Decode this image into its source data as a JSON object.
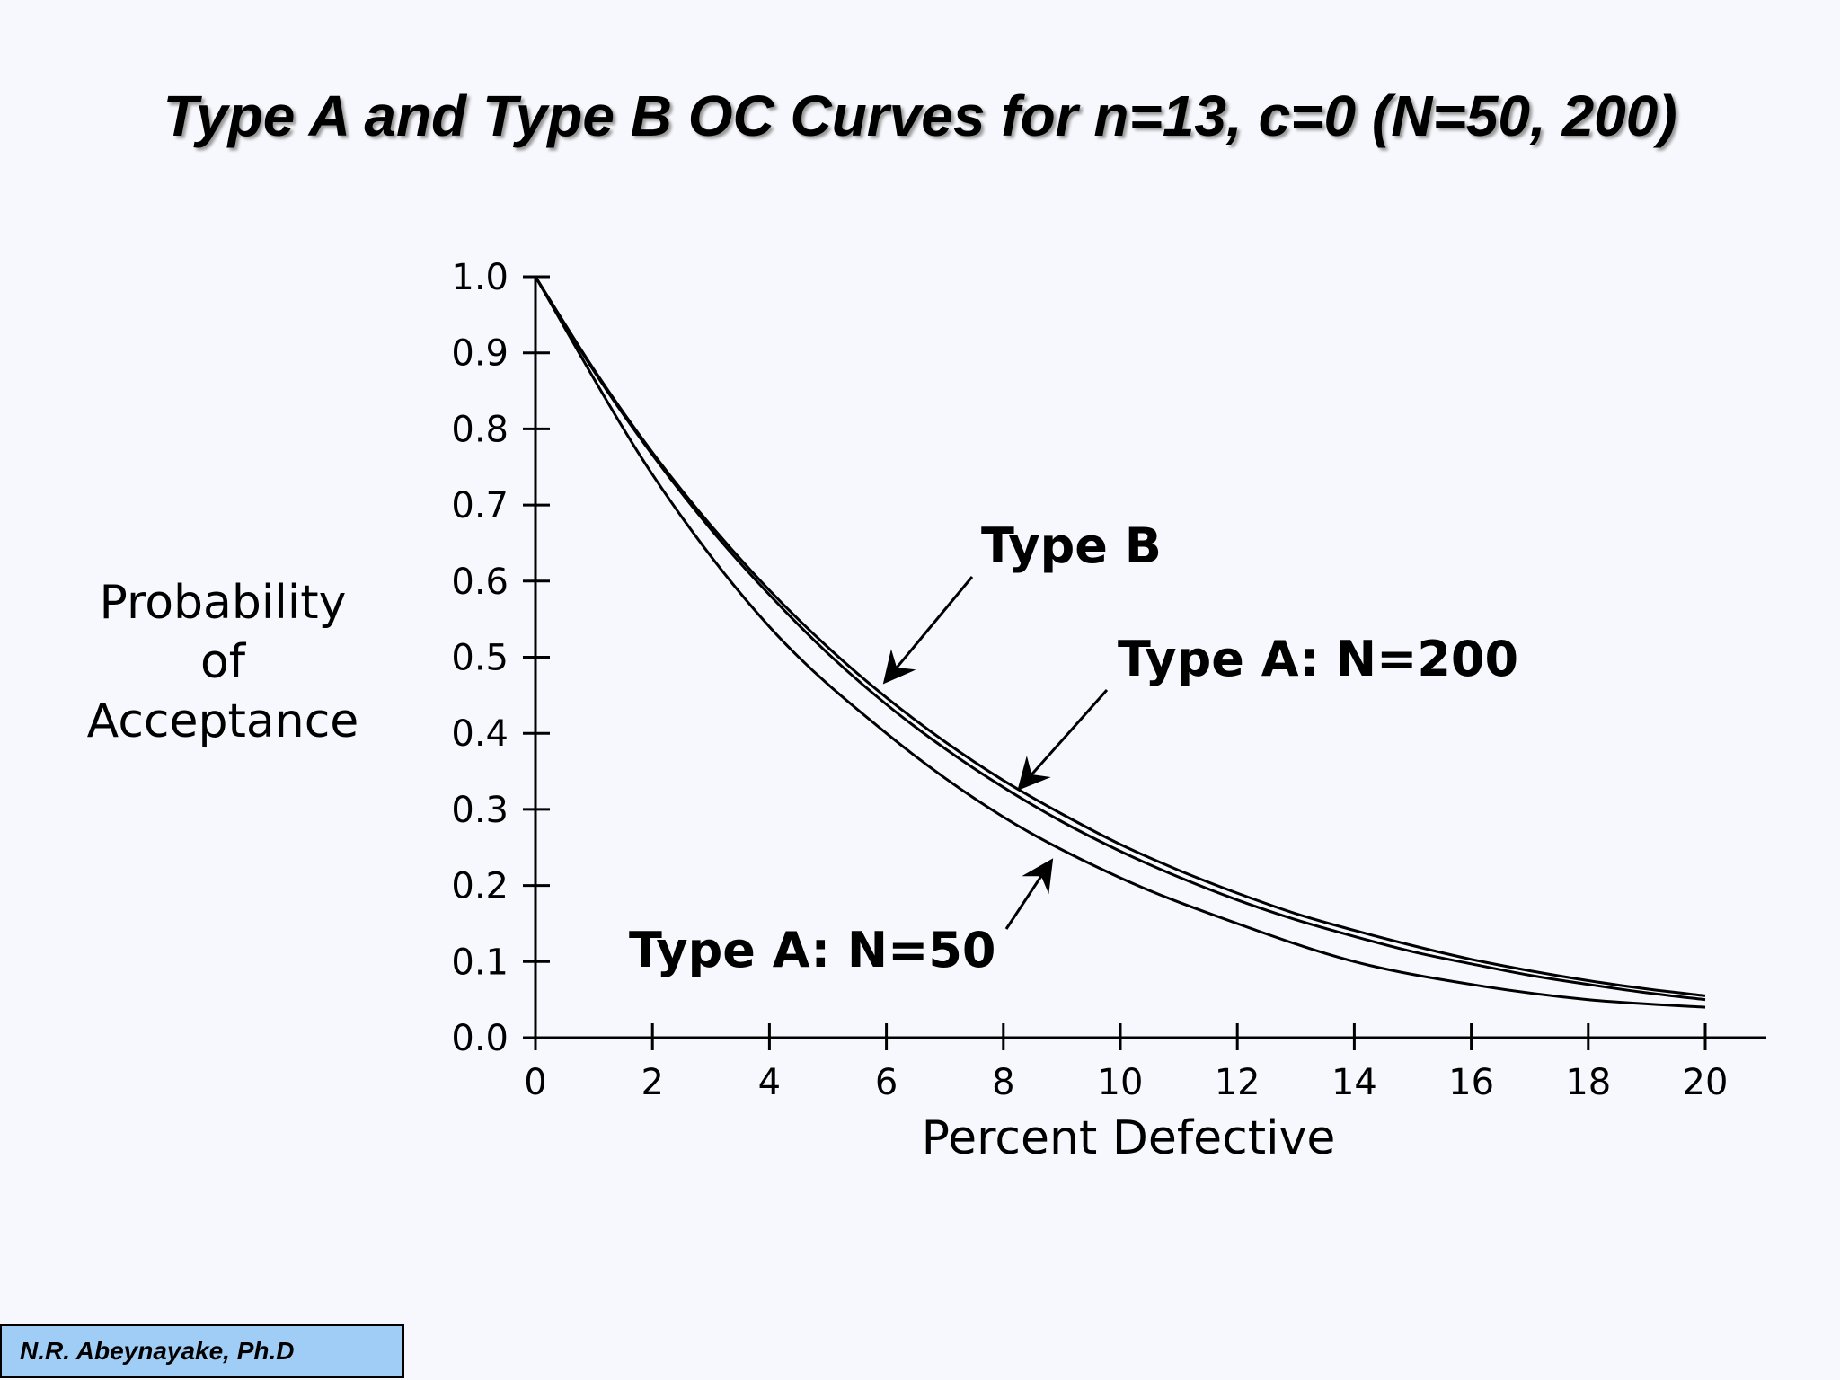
{
  "slide_title": "Type A and Type B OC Curves for n=13, c=0 (N=50, 200)",
  "author": "N.R. Abeynayake, Ph.D",
  "chart_data": {
    "type": "line",
    "xlabel": "Percent Defective",
    "ylabel_lines": [
      "Probability",
      "of",
      "Acceptance"
    ],
    "xlim": [
      0,
      20
    ],
    "ylim": [
      0,
      1
    ],
    "x_ticks": [
      "0",
      "2",
      "4",
      "6",
      "8",
      "10",
      "12",
      "14",
      "16",
      "18",
      "20"
    ],
    "y_ticks": [
      "0.0",
      "0.1",
      "0.2",
      "0.3",
      "0.4",
      "0.5",
      "0.6",
      "0.7",
      "0.8",
      "0.9",
      "1.0"
    ],
    "grid": false,
    "legend": "none",
    "series": [
      {
        "name": "Type B",
        "x": [
          0,
          1,
          2,
          3,
          4,
          5,
          6,
          7,
          8,
          9,
          10,
          11,
          12,
          13,
          14,
          15,
          16,
          17,
          18,
          19,
          20
        ],
        "y": [
          1.0,
          0.878,
          0.769,
          0.673,
          0.588,
          0.513,
          0.447,
          0.389,
          0.338,
          0.294,
          0.254,
          0.22,
          0.19,
          0.163,
          0.141,
          0.121,
          0.103,
          0.088,
          0.075,
          0.064,
          0.055
        ]
      },
      {
        "name": "Type A: N=200",
        "x": [
          0,
          1,
          2,
          3,
          4,
          5,
          6,
          7,
          8,
          9,
          10,
          11,
          12,
          13,
          14,
          15,
          16,
          17,
          18,
          19,
          20
        ],
        "y": [
          1.0,
          0.876,
          0.766,
          0.668,
          0.582,
          0.505,
          0.438,
          0.38,
          0.329,
          0.284,
          0.245,
          0.211,
          0.181,
          0.155,
          0.133,
          0.113,
          0.097,
          0.082,
          0.07,
          0.059,
          0.05
        ]
      },
      {
        "name": "Type A: N=50",
        "x": [
          0,
          2,
          4,
          6,
          8,
          10,
          12,
          14,
          16,
          18,
          20
        ],
        "y": [
          1.0,
          0.74,
          0.54,
          0.4,
          0.29,
          0.21,
          0.15,
          0.1,
          0.07,
          0.05,
          0.04
        ]
      }
    ],
    "annotations": [
      {
        "text": "Type B",
        "points_to": [
          6,
          0.47
        ]
      },
      {
        "text": "Type A: N=200",
        "points_to": [
          8.3,
          0.33
        ]
      },
      {
        "text": "Type A: N=50",
        "points_to": [
          8.8,
          0.23
        ]
      }
    ]
  }
}
